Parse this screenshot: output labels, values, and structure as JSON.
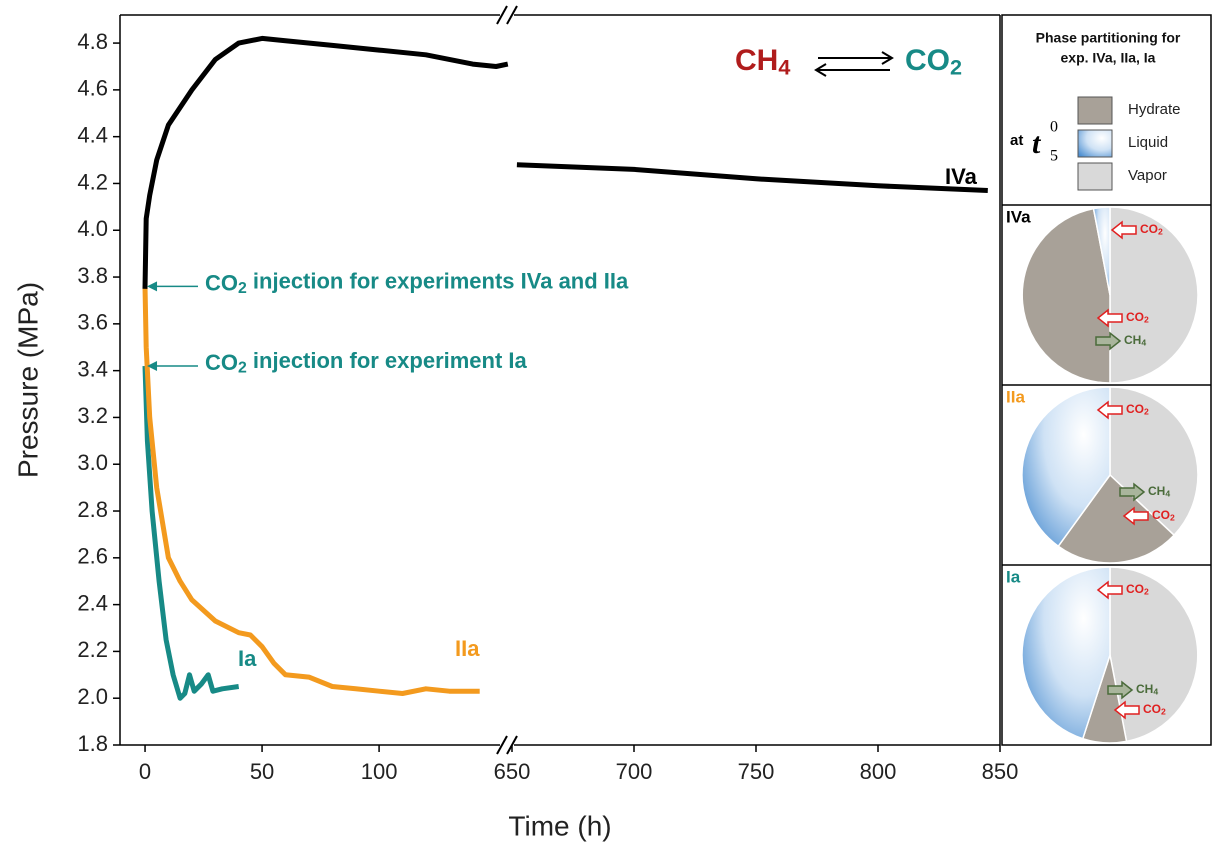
{
  "chart_data": {
    "type": "line",
    "x_label": "Time (h)",
    "y_label": "Pressure (MPa)",
    "x_segments": [
      {
        "xlim": [
          -10.7,
          153.8
        ],
        "xticks": [
          0,
          50,
          100
        ]
      },
      {
        "xlim": [
          650,
          850
        ],
        "xticks": [
          650,
          700,
          750,
          800,
          850
        ]
      }
    ],
    "ylim": [
      1.8,
      4.92
    ],
    "yticks": [
      1.8,
      {
        "value": 2,
        "label": "2.0"
      },
      2.2,
      2.4,
      2.6,
      2.8,
      {
        "value": 3,
        "label": "3.0"
      },
      3.2,
      3.4,
      3.6,
      3.8,
      {
        "value": 4,
        "label": "4.0"
      },
      4.2,
      4.4,
      4.6,
      4.8
    ],
    "series": [
      {
        "name": "IVa",
        "color": "#000000",
        "x": [
          0,
          0.5,
          2,
          5,
          10,
          20,
          30,
          40,
          50,
          60,
          80,
          100,
          120,
          140,
          150,
          155,
          null,
          652,
          700,
          750,
          800,
          845
        ],
        "values": [
          3.75,
          4.05,
          4.15,
          4.3,
          4.45,
          4.6,
          4.73,
          4.8,
          4.82,
          4.81,
          4.79,
          4.77,
          4.75,
          4.71,
          4.7,
          4.71,
          null,
          4.28,
          4.26,
          4.22,
          4.19,
          4.17
        ]
      },
      {
        "name": "IIa",
        "color": "#f39a1e",
        "x": [
          0,
          0.5,
          2,
          5,
          10,
          15,
          20,
          30,
          40,
          45,
          50,
          55,
          60,
          70,
          80,
          90,
          100,
          110,
          120,
          130,
          143
        ],
        "values": [
          3.76,
          3.5,
          3.2,
          2.9,
          2.6,
          2.5,
          2.42,
          2.33,
          2.28,
          2.27,
          2.22,
          2.15,
          2.1,
          2.09,
          2.05,
          2.04,
          2.03,
          2.02,
          2.04,
          2.03,
          2.03
        ]
      },
      {
        "name": "Ia",
        "color": "#178a86",
        "x": [
          0,
          1,
          3,
          6,
          9,
          12,
          15,
          17,
          19,
          21,
          24,
          27,
          29,
          33,
          40
        ],
        "values": [
          3.42,
          3.1,
          2.8,
          2.5,
          2.25,
          2.1,
          2.0,
          2.02,
          2.1,
          2.03,
          2.06,
          2.1,
          2.03,
          2.04,
          2.05
        ]
      }
    ],
    "annotations": [
      {
        "parts": [
          "CO",
          "2",
          " injection for experiments IVa and IIa"
        ],
        "x": 0,
        "y": 3.76
      },
      {
        "parts": [
          "CO",
          "2",
          " injection for experiment Ia"
        ],
        "x": 0,
        "y": 3.42
      }
    ],
    "reaction": {
      "left": [
        "CH",
        "4"
      ],
      "right": [
        "CO",
        "2"
      ]
    },
    "panel": {
      "title": [
        "Phase partitioning for",
        "exp. IVa, IIa, Ia"
      ],
      "time": {
        "prefix": "at",
        "symbol": "t",
        "sup": "0",
        "sub": "5"
      },
      "phases": [
        {
          "name": "Hydrate",
          "color": "#a8a198"
        },
        {
          "name": "Liquid",
          "color": "#6fa8dc"
        },
        {
          "name": "Vapor",
          "color": "#d9d9d9"
        }
      ],
      "pies": [
        {
          "label": "IVa",
          "color": "#000000",
          "order": [
            "Vapor",
            "Hydrate",
            "Liquid"
          ],
          "values": [
            50,
            47,
            3
          ],
          "fluxes": [
            {
              "parts": [
                "CO",
                "2"
              ]
            },
            {
              "parts": [
                "CO",
                "2"
              ]
            },
            {
              "parts": [
                "CH",
                "4"
              ]
            }
          ]
        },
        {
          "label": "IIa",
          "color": "#f39a1e",
          "order": [
            "Vapor",
            "Hydrate",
            "Liquid"
          ],
          "values": [
            37,
            23,
            40
          ],
          "fluxes": [
            {
              "parts": [
                "CO",
                "2"
              ]
            },
            {
              "parts": [
                "CH",
                "4"
              ]
            },
            {
              "parts": [
                "CO",
                "2"
              ]
            }
          ]
        },
        {
          "label": "Ia",
          "color": "#178a86",
          "order": [
            "Vapor",
            "Hydrate",
            "Liquid"
          ],
          "values": [
            47,
            8,
            45
          ],
          "fluxes": [
            {
              "parts": [
                "CO",
                "2"
              ]
            },
            {
              "parts": [
                "CH",
                "4"
              ]
            },
            {
              "parts": [
                "CO",
                "2"
              ]
            }
          ]
        }
      ]
    }
  }
}
